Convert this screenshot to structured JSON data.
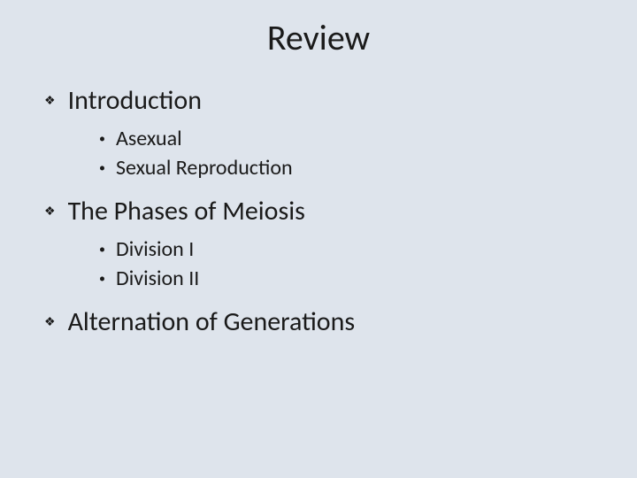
{
  "slide": {
    "title": "Review",
    "background_color": "#dee4ec",
    "text_color": "#1a1a1a",
    "title_fontsize": 40,
    "section_fontsize": 30,
    "subitem_fontsize": 24,
    "sections": [
      {
        "title": "Introduction",
        "bullet": "❖",
        "items": [
          {
            "bullet": "•",
            "text": "Asexual"
          },
          {
            "bullet": "•",
            "text": "Sexual Reproduction"
          }
        ]
      },
      {
        "title": "The Phases of Meiosis",
        "bullet": "❖",
        "items": [
          {
            "bullet": "•",
            "text": "Division I"
          },
          {
            "bullet": "•",
            "text": "Division II"
          }
        ]
      },
      {
        "title": "Alternation of Generations",
        "bullet": "❖",
        "items": []
      }
    ]
  }
}
